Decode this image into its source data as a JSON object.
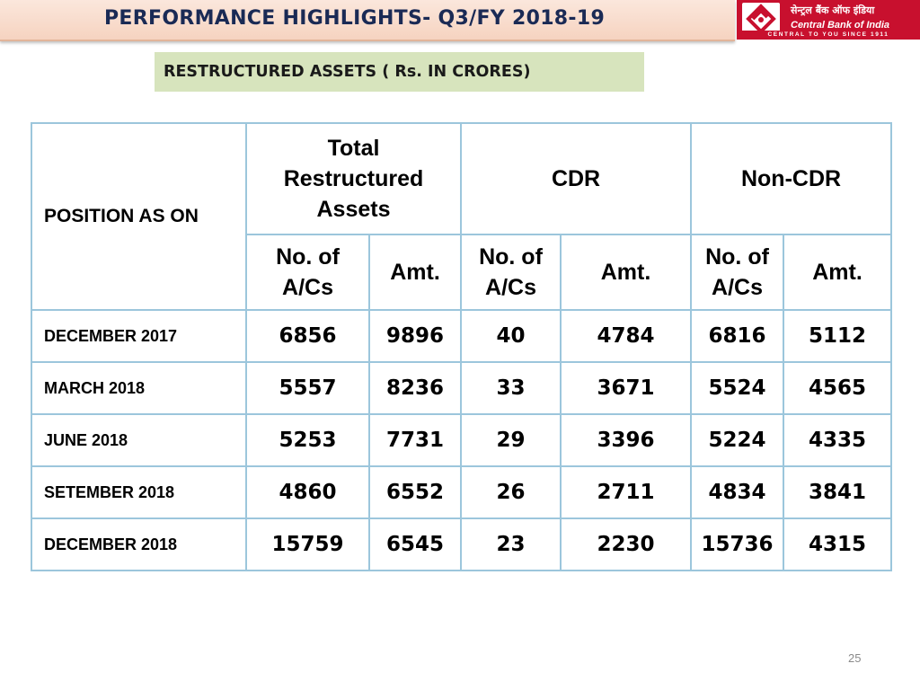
{
  "header": {
    "title": "PERFORMANCE HIGHLIGHTS- Q3/FY 2018-19",
    "logo": {
      "hindi_name": "सेन्ट्रल बैंक ऑफ इंडिया",
      "english_name": "Central Bank of India",
      "tagline": "CENTRAL TO YOU SINCE 1911",
      "brand_color": "#c8102e"
    }
  },
  "subtitle": "RESTRUCTURED ASSETS ( Rs. IN CRORES)",
  "table": {
    "position_header": "POSITION AS ON",
    "groups": [
      "Total Restructured Assets",
      "CDR",
      "Non-CDR"
    ],
    "sub_headers": {
      "accounts": "No. of A/Cs",
      "amount": "Amt."
    },
    "rows": [
      {
        "position": "DECEMBER 2017",
        "values": [
          "6856",
          "9896",
          "40",
          "4784",
          "6816",
          "5112"
        ]
      },
      {
        "position": "MARCH 2018",
        "values": [
          "5557",
          "8236",
          "33",
          "3671",
          "5524",
          "4565"
        ]
      },
      {
        "position": "JUNE 2018",
        "values": [
          "5253",
          "7731",
          "29",
          "3396",
          "5224",
          "4335"
        ]
      },
      {
        "position": "SETEMBER 2018",
        "values": [
          "4860",
          "6552",
          "26",
          "2711",
          "4834",
          "3841"
        ]
      },
      {
        "position": "DECEMBER 2018",
        "values": [
          "15759",
          "6545",
          "23",
          "2230",
          "15736",
          "4315"
        ]
      }
    ]
  },
  "page_number": "25"
}
